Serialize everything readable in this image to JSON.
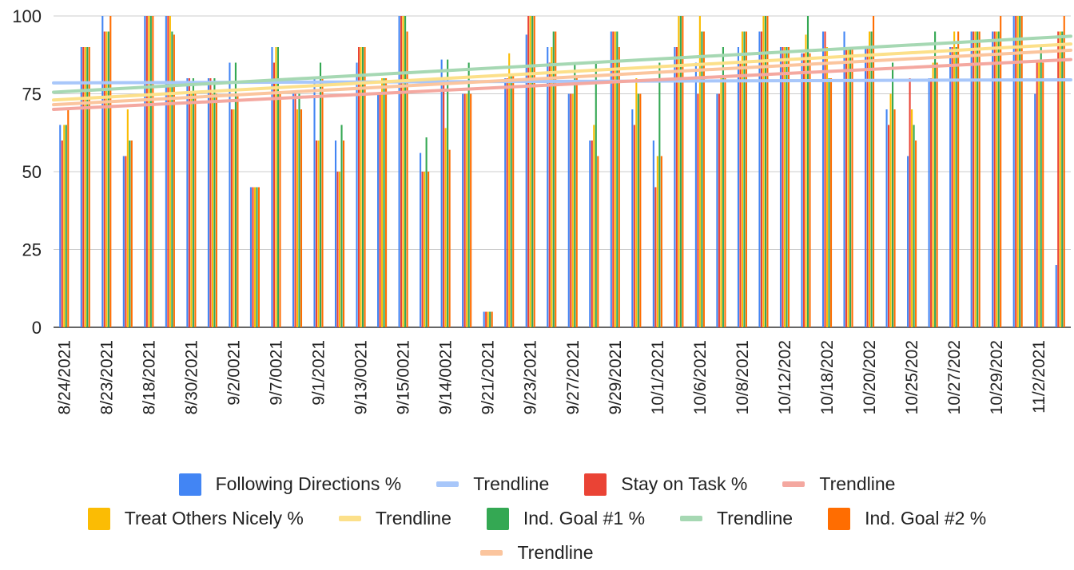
{
  "chart_data": {
    "type": "bar",
    "title": "",
    "xlabel": "",
    "ylabel": "",
    "ylim": [
      0,
      100
    ],
    "yticks": [
      0,
      25,
      50,
      75,
      100
    ],
    "grid": true,
    "legend_position": "bottom",
    "x_tick_labels": [
      "8/24/2021",
      "8/23/2021",
      "8/18/2021",
      "8/30/2021",
      "9/2/0021",
      "9/7/0021",
      "9/1/2021",
      "9/13/0021",
      "9/15/0021",
      "9/14/0021",
      "9/21/2021",
      "9/23/2021",
      "9/27/2021",
      "9/29/2021",
      "10/1/2021",
      "10/6/2021",
      "10/8/2021",
      "10/12/202",
      "10/18/202",
      "10/20/202",
      "10/25/202",
      "10/27/202",
      "10/29/202",
      "11/2/2021"
    ],
    "categories": [
      "8/24/2021",
      "",
      "8/23/2021",
      "",
      "8/18/2021",
      "",
      "8/30/2021",
      "",
      "9/2/0021",
      "",
      "9/7/0021",
      "",
      "9/1/2021",
      "",
      "9/13/0021",
      "",
      "9/15/0021",
      "",
      "9/14/0021",
      "",
      "9/21/2021",
      "",
      "9/23/2021",
      "",
      "9/27/2021",
      "",
      "9/29/2021",
      "",
      "10/1/2021",
      "",
      "10/6/2021",
      "",
      "10/8/2021",
      "",
      "10/12/202",
      "",
      "10/18/202",
      "",
      "10/20/202",
      "",
      "10/25/202",
      "",
      "10/27/202",
      "",
      "10/29/202",
      "",
      "11/2/2021",
      ""
    ],
    "series": [
      {
        "name": "Following Directions %",
        "color": "#4285F4",
        "values": [
          65,
          90,
          100,
          55,
          100,
          100,
          80,
          80,
          85,
          45,
          90,
          75,
          80,
          60,
          85,
          75,
          100,
          56,
          86,
          75,
          5,
          80,
          94,
          90,
          75,
          60,
          95,
          70,
          60,
          90,
          85,
          75,
          90,
          95,
          90,
          88,
          95,
          95,
          90,
          70,
          55,
          80,
          90,
          95,
          95,
          100,
          75,
          20
        ]
      },
      {
        "name": "Stay on Task %",
        "color": "#EA4335",
        "values": [
          60,
          90,
          95,
          55,
          100,
          100,
          80,
          80,
          70,
          45,
          85,
          75,
          60,
          50,
          90,
          75,
          100,
          50,
          80,
          75,
          5,
          80,
          100,
          85,
          75,
          60,
          95,
          65,
          45,
          90,
          75,
          75,
          85,
          95,
          90,
          88,
          95,
          90,
          90,
          65,
          80,
          80,
          90,
          95,
          95,
          100,
          85,
          95
        ]
      },
      {
        "name": "Treat Others Nicely %",
        "color": "#FBBC04",
        "values": [
          65,
          90,
          95,
          70,
          100,
          100,
          75,
          75,
          70,
          45,
          90,
          70,
          60,
          50,
          90,
          80,
          100,
          50,
          64,
          75,
          5,
          88,
          100,
          90,
          75,
          65,
          95,
          80,
          55,
          100,
          100,
          80,
          95,
          100,
          90,
          94,
          90,
          90,
          95,
          75,
          70,
          85,
          95,
          95,
          95,
          100,
          85,
          95
        ]
      },
      {
        "name": "Ind. Goal #1 %",
        "color": "#34A853",
        "values": [
          65,
          90,
          95,
          60,
          100,
          95,
          80,
          80,
          85,
          45,
          90,
          75,
          85,
          65,
          90,
          80,
          100,
          61,
          86,
          85,
          5,
          81,
          100,
          95,
          85,
          85,
          95,
          75,
          85,
          100,
          95,
          90,
          95,
          100,
          90,
          100,
          80,
          90,
          95,
          85,
          65,
          95,
          90,
          95,
          95,
          100,
          90,
          95
        ]
      },
      {
        "name": "Ind. Goal #2 %",
        "color": "#FF6D01",
        "values": [
          70,
          90,
          100,
          60,
          100,
          94,
          75,
          75,
          75,
          45,
          75,
          70,
          80,
          60,
          90,
          80,
          95,
          50,
          57,
          75,
          5,
          81,
          100,
          95,
          80,
          55,
          90,
          75,
          55,
          100,
          95,
          80,
          95,
          100,
          90,
          88,
          80,
          90,
          100,
          70,
          60,
          85,
          95,
          95,
          100,
          100,
          85,
          100
        ]
      }
    ],
    "trendlines": [
      {
        "name": "Trendline",
        "of": "Following Directions %",
        "color": "#A8C7FA",
        "start": 78.5,
        "end": 79.5
      },
      {
        "name": "Trendline",
        "of": "Stay on Task %",
        "color": "#F4A8A0",
        "start": 70,
        "end": 86
      },
      {
        "name": "Trendline",
        "of": "Treat Others Nicely %",
        "color": "#FCE08A",
        "start": 73,
        "end": 91
      },
      {
        "name": "Trendline",
        "of": "Ind. Goal #1 %",
        "color": "#A6D8B3",
        "start": 75.5,
        "end": 93.5
      },
      {
        "name": "Trendline",
        "of": "Ind. Goal #2 %",
        "color": "#FBC59E",
        "start": 71.5,
        "end": 89
      }
    ]
  },
  "legend": {
    "rows": [
      [
        {
          "label": "Following Directions %",
          "kind": "box",
          "color": "#4285F4"
        },
        {
          "label": "Trendline",
          "kind": "line",
          "color": "#A8C7FA"
        },
        {
          "label": "Stay on Task %",
          "kind": "box",
          "color": "#EA4335"
        },
        {
          "label": "Trendline",
          "kind": "line",
          "color": "#F4A8A0"
        }
      ],
      [
        {
          "label": "Treat Others Nicely %",
          "kind": "box",
          "color": "#FBBC04"
        },
        {
          "label": "Trendline",
          "kind": "line",
          "color": "#FCE08A"
        },
        {
          "label": "Ind. Goal #1 %",
          "kind": "box",
          "color": "#34A853"
        },
        {
          "label": "Trendline",
          "kind": "line",
          "color": "#A6D8B3"
        },
        {
          "label": "Ind. Goal #2 %",
          "kind": "box",
          "color": "#FF6D01"
        }
      ],
      [
        {
          "label": "Trendline",
          "kind": "line",
          "color": "#FBC59E"
        }
      ]
    ]
  }
}
